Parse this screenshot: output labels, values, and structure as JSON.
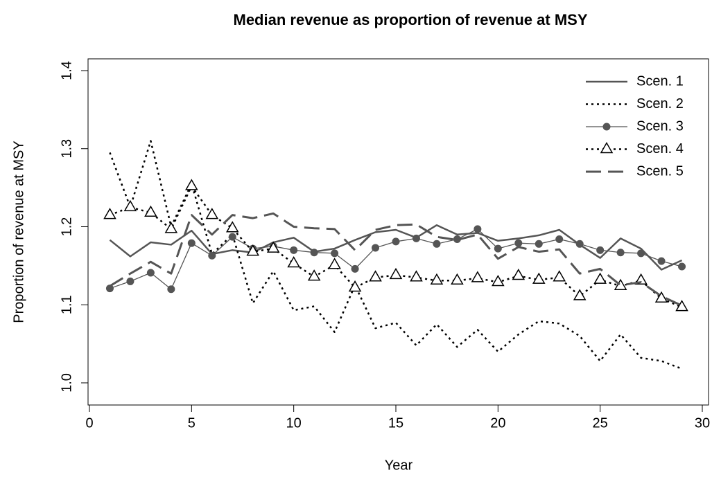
{
  "chart_data": {
    "type": "line",
    "title": "Median revenue as proportion of revenue at MSY",
    "x_label": "Year",
    "y_label": "Proportion of revenue at MSY",
    "x": [
      1,
      2,
      3,
      4,
      5,
      6,
      7,
      8,
      9,
      10,
      11,
      12,
      13,
      14,
      15,
      16,
      17,
      18,
      19,
      20,
      21,
      22,
      23,
      24,
      25,
      26,
      27,
      28,
      29
    ],
    "series": [
      {
        "name": "Scen. 1",
        "color": "#555555",
        "linestyle": "solid",
        "marker": "none",
        "values": [
          1.183,
          1.162,
          1.18,
          1.177,
          1.195,
          1.165,
          1.17,
          1.167,
          1.18,
          1.186,
          1.168,
          1.172,
          1.183,
          1.193,
          1.196,
          1.186,
          1.202,
          1.19,
          1.192,
          1.182,
          1.185,
          1.189,
          1.196,
          1.177,
          1.16,
          1.185,
          1.172,
          1.145,
          1.157
        ]
      },
      {
        "name": "Scen. 2",
        "color": "#000000",
        "linestyle": "dotted",
        "marker": "none",
        "values": [
          1.295,
          1.225,
          1.31,
          1.2,
          1.255,
          1.165,
          1.19,
          1.102,
          1.143,
          1.093,
          1.098,
          1.065,
          1.125,
          1.07,
          1.077,
          1.048,
          1.075,
          1.046,
          1.068,
          1.04,
          1.062,
          1.079,
          1.076,
          1.06,
          1.028,
          1.062,
          1.032,
          1.028,
          1.018
        ]
      },
      {
        "name": "Scen. 3",
        "color": "#555555",
        "linestyle": "thin",
        "marker": "circle",
        "values": [
          1.121,
          1.13,
          1.141,
          1.12,
          1.179,
          1.163,
          1.187,
          1.172,
          1.175,
          1.17,
          1.167,
          1.166,
          1.146,
          1.173,
          1.181,
          1.185,
          1.178,
          1.184,
          1.197,
          1.172,
          1.179,
          1.178,
          1.184,
          1.178,
          1.17,
          1.167,
          1.166,
          1.156,
          1.149
        ]
      },
      {
        "name": "Scen. 4",
        "color": "#000000",
        "linestyle": "dotted",
        "marker": "triangle",
        "values": [
          1.215,
          1.225,
          1.218,
          1.197,
          1.252,
          1.215,
          1.198,
          1.168,
          1.172,
          1.153,
          1.136,
          1.151,
          1.122,
          1.135,
          1.138,
          1.135,
          1.131,
          1.131,
          1.134,
          1.129,
          1.137,
          1.132,
          1.135,
          1.111,
          1.132,
          1.124,
          1.131,
          1.108,
          1.097
        ]
      },
      {
        "name": "Scen. 5",
        "color": "#555555",
        "linestyle": "dashed",
        "marker": "none",
        "values": [
          1.124,
          1.14,
          1.155,
          1.14,
          1.215,
          1.19,
          1.215,
          1.211,
          1.217,
          1.2,
          1.198,
          1.197,
          1.17,
          1.196,
          1.202,
          1.203,
          1.187,
          1.183,
          1.19,
          1.159,
          1.174,
          1.168,
          1.171,
          1.14,
          1.146,
          1.125,
          1.129,
          1.111,
          1.099
        ]
      }
    ],
    "xlim": [
      0,
      30
    ],
    "xticks": [
      0,
      5,
      10,
      15,
      20,
      25,
      30
    ],
    "ylim": [
      1.0,
      1.4
    ],
    "yticks": [
      {
        "value": 1.0,
        "label": "1.0"
      },
      1.1,
      1.2,
      1.3,
      1.4
    ],
    "legend": "top-right",
    "grid": false
  }
}
